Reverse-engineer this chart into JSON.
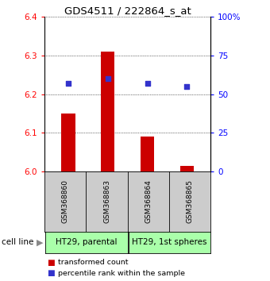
{
  "title": "GDS4511 / 222864_s_at",
  "samples": [
    "GSM368860",
    "GSM368863",
    "GSM368864",
    "GSM368865"
  ],
  "bar_values": [
    6.15,
    6.31,
    6.09,
    6.015
  ],
  "bar_base": 6.0,
  "percentile_values": [
    57,
    60,
    57,
    55
  ],
  "ylim_left": [
    6.0,
    6.4
  ],
  "ylim_right": [
    0,
    100
  ],
  "yticks_left": [
    6.0,
    6.1,
    6.2,
    6.3,
    6.4
  ],
  "yticks_right": [
    0,
    25,
    50,
    75,
    100
  ],
  "ytick_labels_right": [
    "0",
    "25",
    "50",
    "75",
    "100%"
  ],
  "bar_color": "#cc0000",
  "dot_color": "#3333cc",
  "groups": [
    {
      "label": "HT29, parental",
      "samples": [
        0,
        1
      ],
      "color": "#aaffaa"
    },
    {
      "label": "HT29, 1st spheres",
      "samples": [
        2,
        3
      ],
      "color": "#aaffaa"
    }
  ],
  "cell_line_label": "cell line",
  "legend_bar_label": "transformed count",
  "legend_dot_label": "percentile rank within the sample",
  "sample_box_color": "#cccccc",
  "bar_width": 0.35
}
